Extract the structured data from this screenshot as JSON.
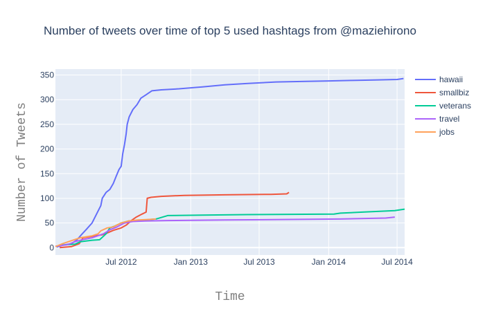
{
  "chart_data": {
    "type": "line",
    "title": "Number of tweets over time of top 5 used hashtags from @maziehirono",
    "xlabel": "Time",
    "ylabel": "Number of Tweets",
    "x_ticks": [
      "Jul 2012",
      "Jan 2013",
      "Jul 2013",
      "Jan 2014",
      "Jul 2014"
    ],
    "y_ticks": [
      0,
      50,
      100,
      150,
      200,
      250,
      300,
      350
    ],
    "xlim": [
      "2012-01-09",
      "2014-07-21"
    ],
    "ylim": [
      -15,
      362
    ],
    "grid": true,
    "legend_position": "top-right",
    "series": [
      {
        "name": "hawaii",
        "color": "#636efa",
        "points": [
          [
            "2012-01-12",
            1
          ],
          [
            "2012-01-28",
            5
          ],
          [
            "2012-02-20",
            8
          ],
          [
            "2012-03-05",
            15
          ],
          [
            "2012-03-20",
            28
          ],
          [
            "2012-04-01",
            38
          ],
          [
            "2012-04-15",
            50
          ],
          [
            "2012-04-28",
            70
          ],
          [
            "2012-05-08",
            85
          ],
          [
            "2012-05-12",
            100
          ],
          [
            "2012-05-22",
            112
          ],
          [
            "2012-06-01",
            118
          ],
          [
            "2012-06-10",
            130
          ],
          [
            "2012-06-18",
            145
          ],
          [
            "2012-06-25",
            158
          ],
          [
            "2012-07-01",
            165
          ],
          [
            "2012-07-05",
            190
          ],
          [
            "2012-07-10",
            210
          ],
          [
            "2012-07-14",
            230
          ],
          [
            "2012-07-17",
            250
          ],
          [
            "2012-07-22",
            265
          ],
          [
            "2012-08-01",
            280
          ],
          [
            "2012-08-12",
            290
          ],
          [
            "2012-08-22",
            303
          ],
          [
            "2012-09-05",
            310
          ],
          [
            "2012-09-20",
            318
          ],
          [
            "2012-10-15",
            320
          ],
          [
            "2012-12-01",
            322
          ],
          [
            "2013-02-01",
            326
          ],
          [
            "2013-04-01",
            330
          ],
          [
            "2013-06-01",
            333
          ],
          [
            "2013-08-15",
            336
          ],
          [
            "2013-11-01",
            337
          ],
          [
            "2014-01-01",
            338
          ],
          [
            "2014-03-01",
            339
          ],
          [
            "2014-05-01",
            340
          ],
          [
            "2014-07-01",
            341
          ],
          [
            "2014-07-18",
            343
          ]
        ]
      },
      {
        "name": "smallbiz",
        "color": "#EF553B",
        "points": [
          [
            "2012-01-20",
            0
          ],
          [
            "2012-02-20",
            2
          ],
          [
            "2012-03-12",
            8
          ],
          [
            "2012-03-22",
            20
          ],
          [
            "2012-04-15",
            23
          ],
          [
            "2012-05-12",
            26
          ],
          [
            "2012-05-20",
            28
          ],
          [
            "2012-06-10",
            35
          ],
          [
            "2012-07-01",
            40
          ],
          [
            "2012-07-15",
            46
          ],
          [
            "2012-07-28",
            55
          ],
          [
            "2012-08-10",
            62
          ],
          [
            "2012-08-25",
            68
          ],
          [
            "2012-09-05",
            72
          ],
          [
            "2012-09-08",
            100
          ],
          [
            "2012-09-18",
            102
          ],
          [
            "2012-10-15",
            104
          ],
          [
            "2012-12-15",
            106
          ],
          [
            "2013-04-01",
            107
          ],
          [
            "2013-08-01",
            108
          ],
          [
            "2013-09-12",
            109
          ],
          [
            "2013-09-18",
            112
          ]
        ]
      },
      {
        "name": "veterans",
        "color": "#00cc96",
        "points": [
          [
            "2012-01-20",
            5
          ],
          [
            "2012-03-01",
            7
          ],
          [
            "2012-03-15",
            12
          ],
          [
            "2012-04-15",
            15
          ],
          [
            "2012-05-05",
            16
          ],
          [
            "2012-05-22",
            28
          ],
          [
            "2012-06-01",
            40
          ],
          [
            "2012-06-15",
            44
          ],
          [
            "2012-07-01",
            50
          ],
          [
            "2012-07-20",
            54
          ],
          [
            "2012-09-01",
            56
          ],
          [
            "2012-10-01",
            58
          ],
          [
            "2012-11-01",
            65
          ],
          [
            "2013-02-01",
            66
          ],
          [
            "2013-06-01",
            67
          ],
          [
            "2014-01-15",
            68
          ],
          [
            "2014-02-01",
            70
          ],
          [
            "2014-04-01",
            72
          ],
          [
            "2014-06-25",
            75
          ],
          [
            "2014-07-21",
            78
          ]
        ]
      },
      {
        "name": "travel",
        "color": "#ab63fa",
        "points": [
          [
            "2012-01-09",
            3
          ],
          [
            "2012-02-10",
            6
          ],
          [
            "2012-03-01",
            12
          ],
          [
            "2012-03-20",
            16
          ],
          [
            "2012-04-15",
            20
          ],
          [
            "2012-05-15",
            28
          ],
          [
            "2012-06-01",
            36
          ],
          [
            "2012-06-20",
            42
          ],
          [
            "2012-07-10",
            50
          ],
          [
            "2012-08-01",
            53
          ],
          [
            "2012-09-01",
            54
          ],
          [
            "2012-11-01",
            55
          ],
          [
            "2013-04-01",
            56
          ],
          [
            "2013-09-01",
            57
          ],
          [
            "2014-02-01",
            58
          ],
          [
            "2014-06-01",
            60
          ],
          [
            "2014-06-25",
            62
          ]
        ]
      },
      {
        "name": "jobs",
        "color": "#FFA15A",
        "points": [
          [
            "2012-01-09",
            2
          ],
          [
            "2012-01-28",
            8
          ],
          [
            "2012-02-20",
            14
          ],
          [
            "2012-03-15",
            20
          ],
          [
            "2012-04-15",
            24
          ],
          [
            "2012-05-01",
            28
          ],
          [
            "2012-05-08",
            34
          ],
          [
            "2012-05-25",
            40
          ],
          [
            "2012-06-10",
            42
          ],
          [
            "2012-07-01",
            50
          ],
          [
            "2012-07-20",
            54
          ],
          [
            "2012-08-15",
            56
          ],
          [
            "2012-09-10",
            57
          ],
          [
            "2012-10-01",
            58
          ]
        ]
      }
    ]
  }
}
